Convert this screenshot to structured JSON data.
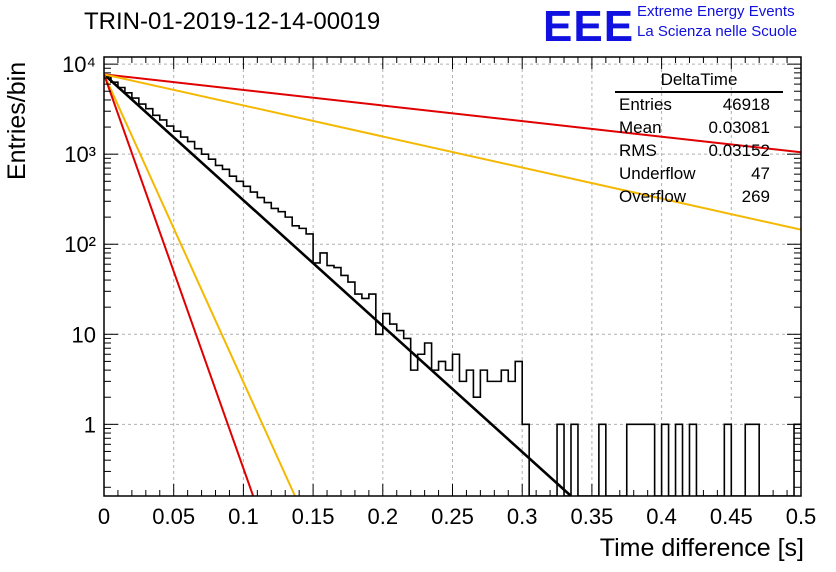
{
  "chart_data": {
    "type": "line",
    "title": "TRIN-01-2019-12-14-00019",
    "xlabel": "Time difference [s]",
    "ylabel": "Entries/bin",
    "xlim": [
      0,
      0.5
    ],
    "ylim": [
      0.16,
      12000
    ],
    "yscale": "log",
    "grid": true,
    "x_ticks": [
      "0",
      "0.05",
      "0.1",
      "0.15",
      "0.2",
      "0.25",
      "0.3",
      "0.35",
      "0.4",
      "0.45",
      "0.5"
    ],
    "y_ticks": [
      "1",
      "10",
      "10²",
      "10³",
      "10⁴"
    ],
    "histogram": {
      "name": "DeltaTime",
      "bin_width": 0.005,
      "values": [
        7300,
        6300,
        5500,
        4800,
        4200,
        3600,
        3200,
        2700,
        2400,
        2050,
        1800,
        1550,
        1380,
        1150,
        1000,
        880,
        750,
        680,
        570,
        500,
        440,
        380,
        330,
        290,
        250,
        230,
        200,
        160,
        150,
        130,
        62,
        80,
        58,
        55,
        45,
        38,
        28,
        25,
        28,
        10,
        17,
        13,
        11,
        9,
        4,
        6,
        8,
        4,
        5,
        4,
        6,
        3,
        4,
        2,
        4,
        3,
        3,
        4,
        3,
        5,
        1,
        0,
        0,
        0,
        0,
        1,
        0,
        1,
        0,
        0,
        0,
        1,
        0,
        0,
        0,
        1,
        1,
        1,
        1,
        0,
        1,
        0,
        1,
        0,
        1,
        0,
        0,
        0,
        0,
        1,
        0,
        0,
        1,
        1,
        0,
        0,
        0,
        0,
        0,
        1
      ]
    },
    "fit_lines": [
      {
        "color": "#000000",
        "x": [
          0,
          0.335
        ],
        "y": [
          7700,
          0.16
        ]
      },
      {
        "color": "#e00000",
        "x": [
          0,
          0.5
        ],
        "y": [
          7700,
          1050
        ]
      },
      {
        "color": "#f5b800",
        "x": [
          0,
          0.5
        ],
        "y": [
          7700,
          145
        ]
      },
      {
        "color": "#f5b800",
        "x": [
          0,
          0.137
        ],
        "y": [
          7700,
          0.16
        ]
      },
      {
        "color": "#e00000",
        "x": [
          0,
          0.107
        ],
        "y": [
          7700,
          0.16
        ]
      }
    ],
    "stats": {
      "title": "DeltaTime",
      "rows": [
        {
          "label": "Entries",
          "value": "46918"
        },
        {
          "label": "Mean",
          "value": "0.03081"
        },
        {
          "label": "RMS",
          "value": "0.03152"
        },
        {
          "label": "Underflow",
          "value": "47"
        },
        {
          "label": "Overflow",
          "value": "269"
        }
      ]
    }
  },
  "logo": {
    "mark": "EEE",
    "line1": "Extreme Energy Events",
    "line2": "La Scienza nelle Scuole"
  },
  "colors": {
    "accent_blue": "#1010e0",
    "red": "#e00000",
    "yellow": "#f5b800"
  }
}
